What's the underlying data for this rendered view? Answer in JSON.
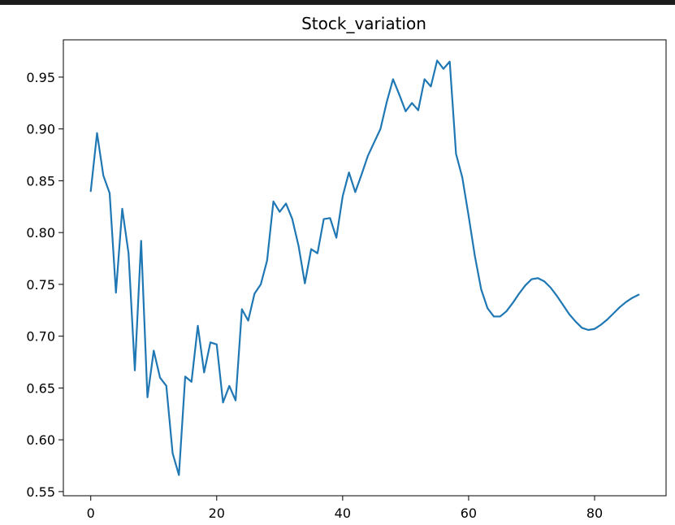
{
  "chart_data": {
    "type": "line",
    "title": "Stock_variation",
    "xlabel": "",
    "ylabel": "",
    "xlim": [
      -4.35,
      91.35
    ],
    "ylim": [
      0.546,
      0.986
    ],
    "xticks": [
      0,
      20,
      40,
      60,
      80
    ],
    "yticks": [
      0.55,
      0.6,
      0.65,
      0.7,
      0.75,
      0.8,
      0.85,
      0.9,
      0.95
    ],
    "xtick_labels": [
      "0",
      "20",
      "40",
      "60",
      "80"
    ],
    "ytick_labels": [
      "0.55",
      "0.60",
      "0.65",
      "0.70",
      "0.75",
      "0.80",
      "0.85",
      "0.90",
      "0.95"
    ],
    "grid": false,
    "series": [
      {
        "color": "#1f77b4",
        "x": [
          0,
          1,
          2,
          3,
          4,
          5,
          6,
          7,
          8,
          9,
          10,
          11,
          12,
          13,
          14,
          15,
          16,
          17,
          18,
          19,
          20,
          21,
          22,
          23,
          24,
          25,
          26,
          27,
          28,
          29,
          30,
          31,
          32,
          33,
          34,
          35,
          36,
          37,
          38,
          39,
          40,
          41,
          42,
          43,
          44,
          45,
          46,
          47,
          48,
          49,
          50,
          51,
          52,
          53,
          54,
          55,
          56,
          57,
          58,
          59,
          60,
          61,
          62,
          63,
          64,
          65,
          66,
          67,
          68,
          69,
          70,
          71,
          72,
          73,
          74,
          75,
          76,
          77,
          78,
          79,
          80,
          81,
          82,
          83,
          84,
          85,
          86,
          87
        ],
        "y": [
          0.84,
          0.896,
          0.855,
          0.838,
          0.742,
          0.823,
          0.78,
          0.667,
          0.792,
          0.641,
          0.686,
          0.66,
          0.652,
          0.587,
          0.566,
          0.661,
          0.656,
          0.71,
          0.665,
          0.694,
          0.692,
          0.636,
          0.652,
          0.638,
          0.726,
          0.715,
          0.741,
          0.75,
          0.773,
          0.83,
          0.82,
          0.828,
          0.813,
          0.787,
          0.751,
          0.784,
          0.78,
          0.813,
          0.814,
          0.795,
          0.835,
          0.858,
          0.839,
          0.856,
          0.874,
          0.887,
          0.9,
          0.926,
          0.948,
          0.933,
          0.917,
          0.925,
          0.918,
          0.948,
          0.941,
          0.966,
          0.958,
          0.965,
          0.876,
          0.853,
          0.816,
          0.777,
          0.745,
          0.727,
          0.719,
          0.719,
          0.724,
          0.732,
          0.741,
          0.749,
          0.755,
          0.756,
          0.753,
          0.747,
          0.739,
          0.73,
          0.721,
          0.714,
          0.708,
          0.706,
          0.707,
          0.711,
          0.716,
          0.722,
          0.728,
          0.733,
          0.737,
          0.74
        ]
      }
    ]
  }
}
